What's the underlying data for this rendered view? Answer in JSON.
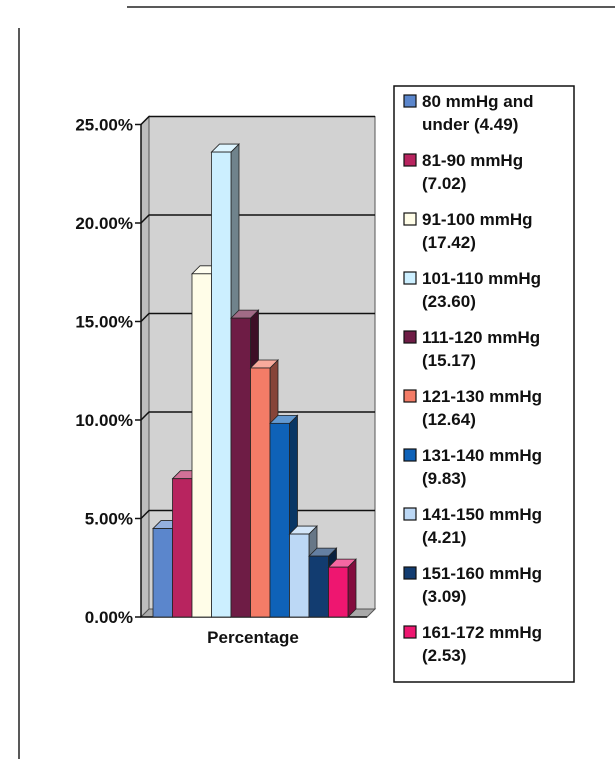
{
  "chart_data": {
    "type": "bar",
    "style": "3d-clustered-column",
    "categories": [
      "Percentage"
    ],
    "ylim": [
      0,
      25
    ],
    "yticks": [
      "0.00%",
      "5.00%",
      "10.00%",
      "15.00%",
      "20.00%",
      "25.00%"
    ],
    "grid": true,
    "legend_position": "right",
    "series": [
      {
        "name": "80 mmHg and under (4.49)",
        "legend_lines": [
          "80 mmHg and",
          "under (4.49)"
        ],
        "value": 4.49,
        "color": "#5b86cc"
      },
      {
        "name": "81-90 mmHg (7.02)",
        "legend_lines": [
          "81-90 mmHg",
          "(7.02)"
        ],
        "value": 7.02,
        "color": "#b8245f"
      },
      {
        "name": "91-100 mmHg (17.42)",
        "legend_lines": [
          "91-100 mmHg",
          "(17.42)"
        ],
        "value": 17.42,
        "color": "#fffde8"
      },
      {
        "name": "101-110 mmHg (23.60)",
        "legend_lines": [
          "101-110 mmHg",
          "(23.60)"
        ],
        "value": 23.6,
        "color": "#ccefff"
      },
      {
        "name": "111-120 mmHg (15.17)",
        "legend_lines": [
          "111-120 mmHg",
          "(15.17)"
        ],
        "value": 15.17,
        "color": "#6e1c45"
      },
      {
        "name": "121-130 mmHg (12.64)",
        "legend_lines": [
          "121-130 mmHg",
          "(12.64)"
        ],
        "value": 12.64,
        "color": "#f47c67"
      },
      {
        "name": "131-140 mmHg (9.83)",
        "legend_lines": [
          "131-140 mmHg",
          "(9.83)"
        ],
        "value": 9.83,
        "color": "#0f62b8"
      },
      {
        "name": "141-150 mmHg (4.21)",
        "legend_lines": [
          "141-150 mmHg",
          "(4.21)"
        ],
        "value": 4.21,
        "color": "#bcd8f5"
      },
      {
        "name": "151-160 mmHg (3.09)",
        "legend_lines": [
          "151-160 mmHg",
          "(3.09)"
        ],
        "value": 3.09,
        "color": "#123c70"
      },
      {
        "name": "161-172 mmHg (2.53)",
        "legend_lines": [
          "161-172 mmHg",
          "(2.53)"
        ],
        "value": 2.53,
        "color": "#ee1670"
      }
    ]
  }
}
